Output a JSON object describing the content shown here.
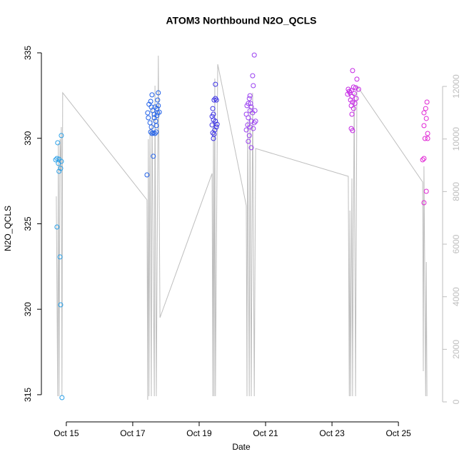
{
  "chart_data": {
    "type": "scatter",
    "title": "ATOM3 Northbound N2O_QCLS",
    "xlabel": "Date",
    "ylabel": "N2O_QCLS",
    "xlim": [
      14.25,
      26.33
    ],
    "xticks": [
      {
        "value": 15,
        "label": "Oct 15"
      },
      {
        "value": 17,
        "label": "Oct 17"
      },
      {
        "value": 19,
        "label": "Oct 19"
      },
      {
        "value": 21,
        "label": "Oct 21"
      },
      {
        "value": 23,
        "label": "Oct 23"
      },
      {
        "value": 25,
        "label": "Oct 25"
      }
    ],
    "ylim": [
      313.41,
      335.71
    ],
    "yticks": [
      315,
      320,
      325,
      330,
      335
    ],
    "y2lim": [
      -760,
      13739
    ],
    "y2ticks": [
      0,
      2000,
      4000,
      6000,
      8000,
      10000,
      12000
    ],
    "y2color": "#bebebe",
    "series": [
      {
        "type": "line",
        "axis": "y2",
        "color": "#bebebe",
        "x": [
          14.7,
          14.74,
          14.76,
          14.78,
          14.81,
          14.83,
          14.85,
          14.87,
          14.89,
          17.43,
          17.45,
          17.47,
          17.49,
          17.52,
          17.56,
          17.58,
          17.65,
          17.67,
          17.71,
          17.77,
          17.82,
          19.39,
          19.41,
          19.43,
          19.45,
          19.47,
          19.49,
          19.56,
          20.42,
          20.44,
          20.46,
          20.51,
          20.53,
          20.57,
          20.61,
          20.66,
          20.7,
          23.49,
          23.52,
          23.54,
          23.56,
          23.6,
          23.62,
          23.67,
          23.71,
          23.75,
          25.73,
          25.75,
          25.77,
          25.82,
          25.84,
          25.86
        ],
        "values": [
          7820,
          217,
          9856,
          217,
          9992,
          8770,
          10453,
          217,
          11757,
          7684,
          81,
          9992,
          217,
          10399,
          217,
          11214,
          217,
          12028,
          217,
          13168,
          3204,
          8689,
          217,
          10671,
          217,
          12300,
          217,
          12843,
          7467,
          217,
          10671,
          217,
          11214,
          217,
          11757,
          217,
          9639,
          8580,
          217,
          7277,
          217,
          8499,
          217,
          11757,
          217,
          12028,
          8363,
          1168,
          8960,
          217,
          5322,
          217
        ]
      },
      {
        "type": "scatter",
        "color": "#2aa0e8",
        "x": [
          14.74,
          14.85,
          14.72,
          14.78,
          14.68,
          14.85,
          14.76,
          14.83,
          14.78,
          14.72,
          14.81,
          14.83,
          14.87
        ],
        "values": [
          329.74,
          330.16,
          328.82,
          328.78,
          328.74,
          328.65,
          328.53,
          328.24,
          328.07,
          324.81,
          323.06,
          320.26,
          314.83
        ]
      },
      {
        "type": "scatter",
        "color": "#2060e8",
        "x": [
          17.43,
          17.62,
          17.45,
          17.47,
          17.49,
          17.54,
          17.58,
          17.56,
          17.52,
          17.56,
          17.54,
          17.58,
          17.62,
          17.67,
          17.71,
          17.69,
          17.65,
          17.6,
          17.67,
          17.73,
          17.75,
          17.77,
          17.8,
          17.77,
          17.73,
          17.71,
          17.75,
          17.65
        ],
        "values": [
          327.86,
          328.95,
          331.49,
          331.2,
          331.99,
          332.16,
          332.54,
          331.83,
          330.91,
          330.66,
          330.37,
          330.28,
          330.32,
          330.28,
          330.37,
          331.0,
          331.41,
          331.62,
          331.83,
          331.74,
          332.24,
          332.66,
          331.53,
          331.91,
          331.33,
          330.74,
          331.49,
          331.2
        ]
      },
      {
        "type": "scatter",
        "color": "#3a30e6",
        "x": [
          19.49,
          19.49,
          19.52,
          19.45,
          19.41,
          19.43,
          19.39,
          19.43,
          19.49,
          19.39,
          19.52,
          19.47,
          19.41,
          19.45,
          19.43,
          19.54
        ],
        "values": [
          333.16,
          332.33,
          332.24,
          332.24,
          331.74,
          331.41,
          331.28,
          331.08,
          331.0,
          330.78,
          330.66,
          330.49,
          330.32,
          330.24,
          329.99,
          330.82
        ]
      },
      {
        "type": "scatter",
        "color": "#9a40f0",
        "x": [
          20.66,
          20.61,
          20.63,
          20.53,
          20.51,
          20.48,
          20.55,
          20.44,
          20.57,
          20.68,
          20.61,
          20.53,
          20.42,
          20.48,
          20.57,
          20.66,
          20.7,
          20.46,
          20.53,
          20.42,
          20.63,
          20.51,
          20.48,
          20.57
        ],
        "values": [
          334.87,
          333.66,
          333.08,
          332.49,
          332.33,
          332.04,
          332.04,
          331.91,
          331.83,
          331.62,
          331.49,
          331.62,
          331.41,
          331.2,
          331.0,
          330.91,
          331.0,
          330.78,
          330.66,
          330.49,
          330.57,
          330.16,
          329.82,
          329.45
        ]
      },
      {
        "type": "scatter",
        "color": "#c424e4",
        "x": [
          23.62,
          23.75,
          23.49,
          23.54,
          23.58,
          23.65,
          23.71,
          23.8,
          23.47,
          23.52,
          23.6,
          23.67,
          23.73,
          23.56,
          23.62,
          23.69,
          23.58,
          23.65,
          23.6,
          23.58,
          23.62
        ],
        "values": [
          333.96,
          333.46,
          332.87,
          332.66,
          332.79,
          333.0,
          332.95,
          332.87,
          332.58,
          332.75,
          332.45,
          332.62,
          332.33,
          332.24,
          332.12,
          332.04,
          331.91,
          331.74,
          331.41,
          330.57,
          330.45
        ]
      },
      {
        "type": "scatter",
        "color": "#e024d4",
        "x": [
          25.86,
          25.82,
          25.77,
          25.84,
          25.77,
          25.88,
          25.8,
          25.88,
          25.77,
          25.73,
          25.84,
          25.77
        ],
        "values": [
          332.12,
          331.74,
          331.49,
          331.16,
          330.74,
          330.28,
          329.99,
          329.99,
          328.82,
          328.74,
          326.9,
          326.23
        ]
      }
    ]
  }
}
